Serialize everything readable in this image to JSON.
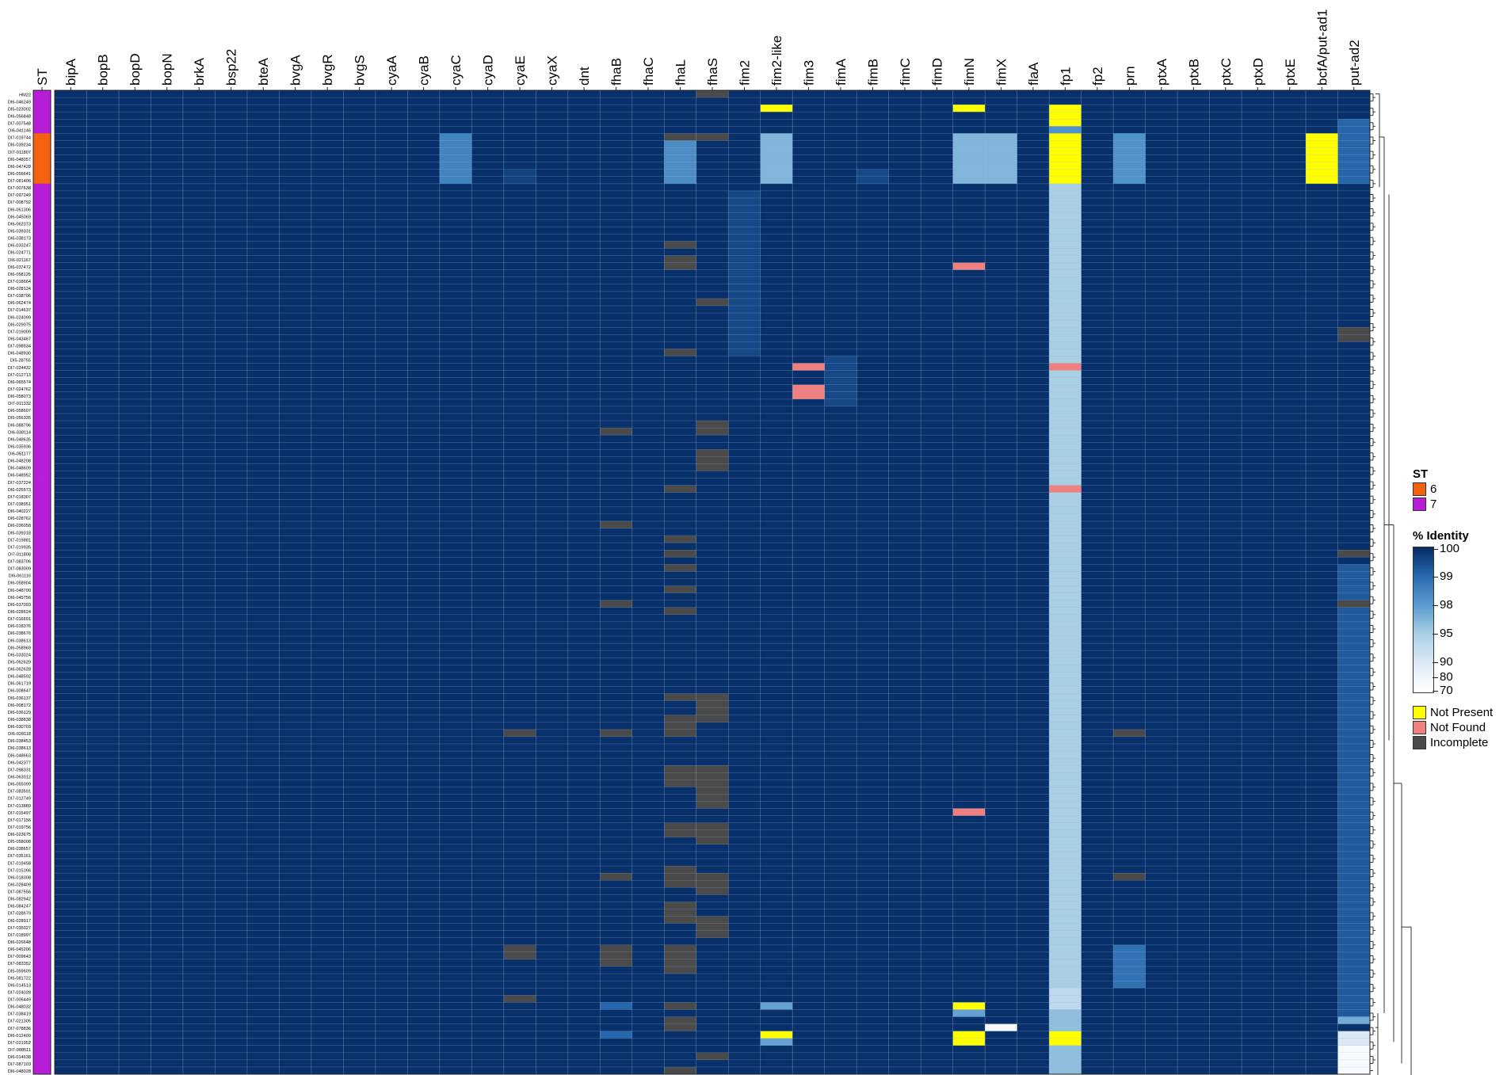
{
  "chart_data": {
    "type": "heatmap",
    "title": "",
    "st_column_label": "ST",
    "columns": [
      "bipA",
      "bopB",
      "bopD",
      "bopN",
      "brkA",
      "bsp22",
      "bteA",
      "bvgA",
      "bvgR",
      "bvgS",
      "cyaA",
      "cyaB",
      "cyaC",
      "cyaD",
      "cyaE",
      "cyaX",
      "dnt",
      "fhaB",
      "fhaC",
      "fhaL",
      "fhaS",
      "fim2",
      "fim2-like",
      "fim3",
      "fimA",
      "fimB",
      "fimC",
      "fimD",
      "fimN",
      "fimX",
      "flaA",
      "fp1",
      "fp2",
      "prn",
      "ptxA",
      "ptxB",
      "ptxC",
      "ptxD",
      "ptxE",
      "bcfA/put-ad1",
      "put-ad2"
    ],
    "rows": [
      "HM22",
      "DI6-046249",
      "DI5-023002",
      "DI6-056848",
      "DI7-007548",
      "DI6-041146",
      "DI7-019744",
      "DI6-039234",
      "DI7-011807",
      "DI6-048057",
      "DI6-047428",
      "DI6-056641",
      "DI7-081406",
      "DI7-007638",
      "DI7-097249",
      "DI7-008792",
      "DI6-061306",
      "DI6-045069",
      "DI6-062073",
      "DI6-039331",
      "DI6-038173",
      "DI6-033247",
      "DI6-024771",
      "DI6-021167",
      "DI6-037472",
      "DI6-058125",
      "DI7-018664",
      "DI6-028124",
      "DI7-038706",
      "DI6-062474",
      "DI7-014637",
      "DI6-024099",
      "DI6-029075",
      "DI7-019009",
      "DI6-043467",
      "DI7-098934",
      "DI6-048930",
      "DI5-28755",
      "DI7-024432",
      "DI7-012713",
      "DI6-065574",
      "DI7-024762",
      "DI6-058073",
      "DI7-011332",
      "DI6-058607",
      "DI5-056335",
      "DI6-088796",
      "DI6-038114",
      "DI6-048635",
      "DI6-035936",
      "DI6-051177",
      "DI6-048208",
      "DI6-048609",
      "DI6-048952",
      "DI7-037224",
      "DI6-025573",
      "DI7-018307",
      "DI7-038951",
      "DI6-040227",
      "DI6-028762",
      "DI6-036058",
      "DI6-039318",
      "DI7-019881",
      "DI7-019935",
      "DI7-011808",
      "DI7-083706",
      "DI7-083009",
      "DI6-061116",
      "DI6-058904",
      "DI6-048700",
      "DI6-045756",
      "DI6-037093",
      "DI6-028624",
      "DI7-016691",
      "DI6-018376",
      "DI6-038676",
      "DI6-038613",
      "DI6-058969",
      "DI6-033024",
      "DI5-062629",
      "DI6-062628",
      "DI6-048592",
      "DI6-061719",
      "DI6-008647",
      "DI6-036137",
      "DI6-008172",
      "DI6-036129",
      "DI6-038838",
      "DI6-030703",
      "DI6-028118",
      "DI6-038453",
      "DI6-038613",
      "DI6-048663",
      "DI6-042377",
      "DI7-098331",
      "DI6-063012",
      "DI6-055099",
      "DI7-083591",
      "DI7-012749",
      "DI7-013889",
      "DI7-015497",
      "DI7-017156",
      "DI7-019756",
      "DI6-023675",
      "DI5-058008",
      "DI6-038657",
      "DI7-035161",
      "DI7-019458",
      "DI7-015166",
      "DI6-018308",
      "DI6-028409",
      "DI7-087556",
      "DI6-082942",
      "DI6-084247",
      "DI7-028679",
      "DI6-028917",
      "DI7-035027",
      "DI7-018997",
      "DI6-026648",
      "DI6-045206",
      "DI7-009643",
      "DI7-083352",
      "DI5-059609",
      "DI6-081722",
      "DI6-014513",
      "DI7-024028",
      "DI7-006449",
      "DI6-048032",
      "DI7-038419",
      "DI7-021305",
      "DI7-078836",
      "DI6-012409",
      "DI7-021952",
      "DI7-008511",
      "DI6-014638",
      "DI7-087103",
      "DI6-048028"
    ],
    "st_values": [
      7,
      7,
      7,
      7,
      7,
      7,
      6,
      6,
      6,
      6,
      6,
      6,
      6,
      7,
      7,
      7,
      7,
      7,
      7,
      7,
      7,
      7,
      7,
      7,
      7,
      7,
      7,
      7,
      7,
      7,
      7,
      7,
      7,
      7,
      7,
      7,
      7,
      7,
      7,
      7,
      7,
      7,
      7,
      7,
      7,
      7,
      7,
      7,
      7,
      7,
      7,
      7,
      7,
      7,
      7,
      7,
      7,
      7,
      7,
      7,
      7,
      7,
      7,
      7,
      7,
      7,
      7,
      7,
      7,
      7,
      7,
      7,
      7,
      7,
      7,
      7,
      7,
      7,
      7,
      7,
      7,
      7,
      7,
      7,
      7,
      7,
      7,
      7,
      7,
      7,
      7,
      7,
      7,
      7,
      7,
      7,
      7,
      7,
      7,
      7,
      7,
      7,
      7,
      7,
      7,
      7,
      7,
      7,
      7,
      7,
      7,
      7,
      7,
      7,
      7,
      7,
      7,
      7,
      7,
      7,
      7,
      7,
      7,
      7,
      7,
      7,
      7,
      7,
      7,
      7,
      7,
      7,
      7,
      7,
      7,
      7,
      7,
      7
    ],
    "default_identity": 100,
    "column_identity": {
      "fp1": 95
    },
    "overrides": [
      {
        "cols": [
          "cyaC"
        ],
        "rows": [
          6,
          12
        ],
        "value": 98.5
      },
      {
        "cols": [
          "cyaE"
        ],
        "rows": [
          11,
          12
        ],
        "value": 99.7
      },
      {
        "cols": [
          "fhaL"
        ],
        "rows": [
          7,
          12
        ],
        "value": 98.3
      },
      {
        "cols": [
          "fim2-like"
        ],
        "rows": [
          6,
          12
        ],
        "value": 96.5
      },
      {
        "cols": [
          "fimB"
        ],
        "rows": [
          11,
          12
        ],
        "value": 99.6
      },
      {
        "cols": [
          "fimN",
          "fimX"
        ],
        "rows": [
          6,
          12
        ],
        "value": 96.5
      },
      {
        "cols": [
          "fp1"
        ],
        "rows": [
          0,
          12
        ],
        "value": 100
      },
      {
        "cols": [
          "fp1"
        ],
        "rows": [
          5,
          5
        ],
        "value": 98.2
      },
      {
        "cols": [
          "prn"
        ],
        "rows": [
          6,
          12
        ],
        "value": 98.2
      },
      {
        "cols": [
          "put-ad2"
        ],
        "rows": [
          4,
          12
        ],
        "value": 99.1
      },
      {
        "cols": [
          "put-ad2"
        ],
        "rows": [
          66,
          128
        ],
        "value": 99.3
      },
      {
        "cols": [
          "fim2"
        ],
        "rows": [
          14,
          36
        ],
        "value": 99.6
      },
      {
        "cols": [
          "fimA"
        ],
        "rows": [
          37,
          43
        ],
        "value": 99.6
      },
      {
        "cols": [
          "prn"
        ],
        "rows": [
          119,
          124
        ],
        "value": 98.9
      },
      {
        "cols": [
          "fp1"
        ],
        "rows": [
          125,
          127
        ],
        "value": 93
      },
      {
        "cols": [
          "fp1"
        ],
        "rows": [
          128,
          138
        ],
        "value": 96
      },
      {
        "cols": [
          "fhaB"
        ],
        "rows": [
          127,
          127
        ],
        "value": 99.1
      },
      {
        "cols": [
          "fhaB"
        ],
        "rows": [
          131,
          131
        ],
        "value": 99.1
      },
      {
        "cols": [
          "fim2-like"
        ],
        "rows": [
          127,
          127
        ],
        "value": 97.6
      },
      {
        "cols": [
          "fim2-like"
        ],
        "rows": [
          132,
          132
        ],
        "value": 97.6
      },
      {
        "cols": [
          "fimN"
        ],
        "rows": [
          128,
          128
        ],
        "value": 97.6
      },
      {
        "cols": [
          "fimX"
        ],
        "rows": [
          130,
          130
        ],
        "value": 75
      },
      {
        "cols": [
          "put-ad2"
        ],
        "rows": [
          129,
          129
        ],
        "value": 97
      },
      {
        "cols": [
          "put-ad2"
        ],
        "rows": [
          130,
          130
        ],
        "value": 100
      },
      {
        "cols": [
          "put-ad2"
        ],
        "rows": [
          131,
          132
        ],
        "value": 90
      },
      {
        "cols": [
          "put-ad2"
        ],
        "rows": [
          133,
          137
        ],
        "value": 75
      }
    ],
    "categorical": [
      {
        "col": "fim2-like",
        "rows": [
          2,
          2
        ],
        "status": "Not Present"
      },
      {
        "col": "fimN",
        "rows": [
          2,
          2
        ],
        "status": "Not Present"
      },
      {
        "col": "fp1",
        "rows": [
          2,
          4
        ],
        "status": "Not Present"
      },
      {
        "col": "fp1",
        "rows": [
          6,
          12
        ],
        "status": "Not Present"
      },
      {
        "col": "bcfA/put-ad1",
        "rows": [
          6,
          12
        ],
        "status": "Not Present"
      },
      {
        "col": "fim2-like",
        "rows": [
          131,
          131
        ],
        "status": "Not Present"
      },
      {
        "col": "fimN",
        "rows": [
          127,
          127
        ],
        "status": "Not Present"
      },
      {
        "col": "fimN",
        "rows": [
          131,
          132
        ],
        "status": "Not Present"
      },
      {
        "col": "fp1",
        "rows": [
          131,
          132
        ],
        "status": "Not Present"
      },
      {
        "col": "fimN",
        "rows": [
          24,
          24
        ],
        "status": "Not Found"
      },
      {
        "col": "fim3",
        "rows": [
          38,
          38
        ],
        "status": "Not Found"
      },
      {
        "col": "fim3",
        "rows": [
          41,
          42
        ],
        "status": "Not Found"
      },
      {
        "col": "fp1",
        "rows": [
          38,
          38
        ],
        "status": "Not Found"
      },
      {
        "col": "fp1",
        "rows": [
          55,
          55
        ],
        "status": "Not Found"
      },
      {
        "col": "fimN",
        "rows": [
          100,
          100
        ],
        "status": "Not Found"
      },
      {
        "col": "fhaL",
        "rows": [
          6,
          6
        ],
        "status": "Incomplete"
      },
      {
        "col": "fhaL",
        "rows": [
          21,
          21
        ],
        "status": "Incomplete"
      },
      {
        "col": "fhaL",
        "rows": [
          23,
          24
        ],
        "status": "Incomplete"
      },
      {
        "col": "fhaL",
        "rows": [
          36,
          36
        ],
        "status": "Incomplete"
      },
      {
        "col": "fhaL",
        "rows": [
          55,
          55
        ],
        "status": "Incomplete"
      },
      {
        "col": "fhaL",
        "rows": [
          62,
          62
        ],
        "status": "Incomplete"
      },
      {
        "col": "fhaL",
        "rows": [
          64,
          64
        ],
        "status": "Incomplete"
      },
      {
        "col": "fhaL",
        "rows": [
          66,
          66
        ],
        "status": "Incomplete"
      },
      {
        "col": "fhaL",
        "rows": [
          69,
          69
        ],
        "status": "Incomplete"
      },
      {
        "col": "fhaL",
        "rows": [
          72,
          72
        ],
        "status": "Incomplete"
      },
      {
        "col": "fhaL",
        "rows": [
          84,
          84
        ],
        "status": "Incomplete"
      },
      {
        "col": "fhaL",
        "rows": [
          87,
          89
        ],
        "status": "Incomplete"
      },
      {
        "col": "fhaL",
        "rows": [
          94,
          96
        ],
        "status": "Incomplete"
      },
      {
        "col": "fhaL",
        "rows": [
          102,
          103
        ],
        "status": "Incomplete"
      },
      {
        "col": "fhaL",
        "rows": [
          108,
          110
        ],
        "status": "Incomplete"
      },
      {
        "col": "fhaL",
        "rows": [
          113,
          115
        ],
        "status": "Incomplete"
      },
      {
        "col": "fhaL",
        "rows": [
          119,
          122
        ],
        "status": "Incomplete"
      },
      {
        "col": "fhaL",
        "rows": [
          127,
          127
        ],
        "status": "Incomplete"
      },
      {
        "col": "fhaL",
        "rows": [
          129,
          130
        ],
        "status": "Incomplete"
      },
      {
        "col": "fhaL",
        "rows": [
          136,
          137
        ],
        "status": "Incomplete"
      },
      {
        "col": "fhaS",
        "rows": [
          0,
          0
        ],
        "status": "Incomplete"
      },
      {
        "col": "fhaS",
        "rows": [
          6,
          6
        ],
        "status": "Incomplete"
      },
      {
        "col": "fhaS",
        "rows": [
          29,
          29
        ],
        "status": "Incomplete"
      },
      {
        "col": "fhaS",
        "rows": [
          46,
          47
        ],
        "status": "Incomplete"
      },
      {
        "col": "fhaS",
        "rows": [
          50,
          52
        ],
        "status": "Incomplete"
      },
      {
        "col": "fhaS",
        "rows": [
          84,
          87
        ],
        "status": "Incomplete"
      },
      {
        "col": "fhaS",
        "rows": [
          94,
          99
        ],
        "status": "Incomplete"
      },
      {
        "col": "fhaS",
        "rows": [
          102,
          104
        ],
        "status": "Incomplete"
      },
      {
        "col": "fhaS",
        "rows": [
          109,
          111
        ],
        "status": "Incomplete"
      },
      {
        "col": "fhaS",
        "rows": [
          115,
          117
        ],
        "status": "Incomplete"
      },
      {
        "col": "fhaS",
        "rows": [
          134,
          134
        ],
        "status": "Incomplete"
      },
      {
        "col": "fhaB",
        "rows": [
          47,
          47
        ],
        "status": "Incomplete"
      },
      {
        "col": "fhaB",
        "rows": [
          60,
          60
        ],
        "status": "Incomplete"
      },
      {
        "col": "fhaB",
        "rows": [
          71,
          71
        ],
        "status": "Incomplete"
      },
      {
        "col": "fhaB",
        "rows": [
          89,
          89
        ],
        "status": "Incomplete"
      },
      {
        "col": "fhaB",
        "rows": [
          109,
          109
        ],
        "status": "Incomplete"
      },
      {
        "col": "fhaB",
        "rows": [
          119,
          121
        ],
        "status": "Incomplete"
      },
      {
        "col": "cyaE",
        "rows": [
          89,
          89
        ],
        "status": "Incomplete"
      },
      {
        "col": "cyaE",
        "rows": [
          119,
          120
        ],
        "status": "Incomplete"
      },
      {
        "col": "cyaE",
        "rows": [
          126,
          126
        ],
        "status": "Incomplete"
      },
      {
        "col": "prn",
        "rows": [
          89,
          89
        ],
        "status": "Incomplete"
      },
      {
        "col": "prn",
        "rows": [
          109,
          109
        ],
        "status": "Incomplete"
      },
      {
        "col": "put-ad2",
        "rows": [
          33,
          34
        ],
        "status": "Incomplete"
      },
      {
        "col": "put-ad2",
        "rows": [
          64,
          64
        ],
        "status": "Incomplete"
      },
      {
        "col": "put-ad2",
        "rows": [
          71,
          71
        ],
        "status": "Incomplete"
      }
    ],
    "colorscale": {
      "title": "% Identity",
      "ticks": [
        100,
        99,
        98,
        95,
        90,
        80,
        70
      ],
      "tick_labels": [
        "100",
        "99",
        "98",
        "95",
        "90",
        "80",
        "70"
      ],
      "stops": [
        {
          "value": 100,
          "color": "#08306b"
        },
        {
          "value": 99,
          "color": "#2a6cb0"
        },
        {
          "value": 98,
          "color": "#5a9bd0"
        },
        {
          "value": 95,
          "color": "#a9cfe5"
        },
        {
          "value": 90,
          "color": "#dae8f4"
        },
        {
          "value": 80,
          "color": "#eef4fa"
        },
        {
          "value": 70,
          "color": "#ffffff"
        }
      ]
    },
    "st_legend": {
      "title": "ST",
      "items": [
        {
          "label": "6",
          "color": "#f4620f"
        },
        {
          "label": "7",
          "color": "#b81ed8"
        }
      ]
    },
    "status_legend": [
      {
        "label": "Not Present",
        "color": "#ffff00"
      },
      {
        "label": "Not Found",
        "color": "#f08080"
      },
      {
        "label": "Incomplete",
        "color": "#4a4a4a"
      }
    ],
    "dendrogram": "right"
  }
}
